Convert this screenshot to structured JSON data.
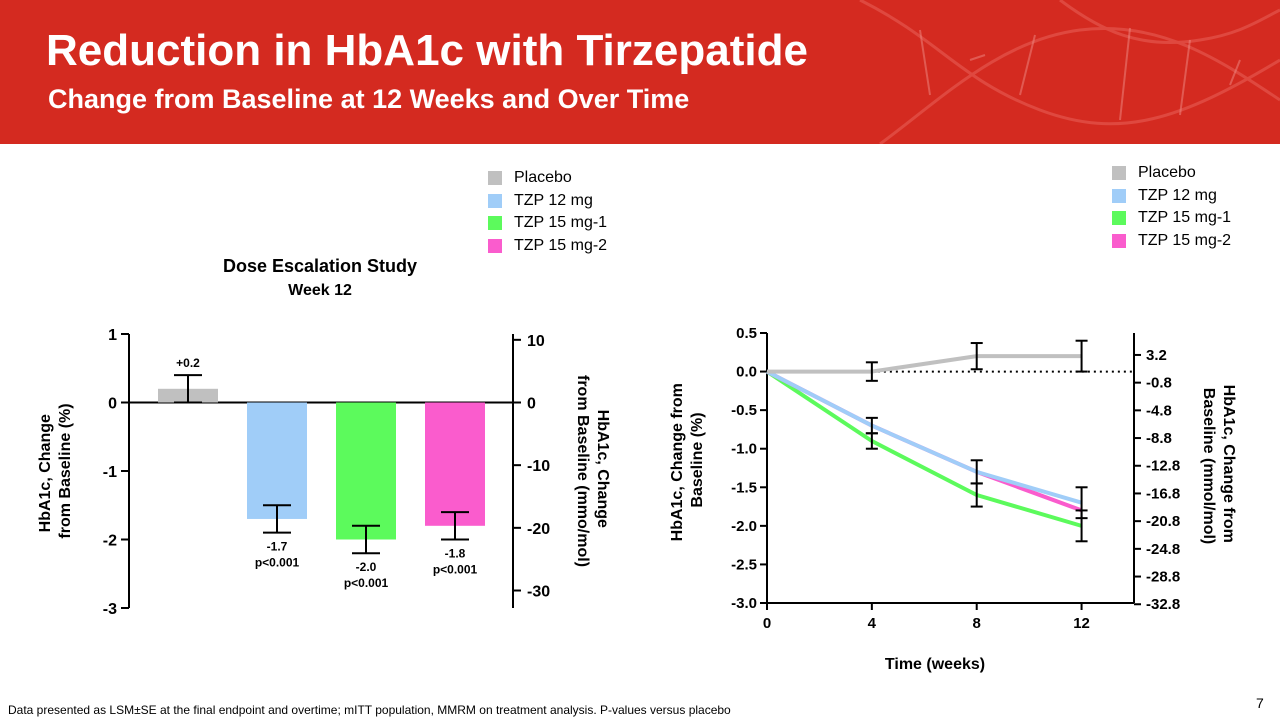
{
  "slide": {
    "title": "Reduction in HbA1c with Tirzepatide",
    "subtitle": "Change from Baseline at 12 Weeks and Over Time",
    "footnote": "Data presented as LSM±SE at the final endpoint and overtime; mITT population, MMRM on treatment analysis. P-values versus placebo",
    "page_number": "7",
    "banner_color": "#d42a20"
  },
  "legend": [
    {
      "label": "Placebo",
      "color": "#c0c0c0"
    },
    {
      "label": "TZP 12 mg",
      "color": "#a0cdf8"
    },
    {
      "label": "TZP 15 mg-1",
      "color": "#5cfa5c"
    },
    {
      "label": "TZP 15 mg-2",
      "color": "#fa5ccd"
    }
  ],
  "chart_data": [
    {
      "type": "bar",
      "title": "Dose Escalation Study",
      "subtitle": "Week 12",
      "categories": [
        "Placebo",
        "TZP 12 mg",
        "TZP 15 mg-1",
        "TZP 15 mg-2"
      ],
      "values": [
        0.2,
        -1.7,
        -2.0,
        -1.8
      ],
      "errors": [
        0.2,
        0.2,
        0.2,
        0.2
      ],
      "colors": [
        "#c0c0c0",
        "#a0cdf8",
        "#5cfa5c",
        "#fa5ccd"
      ],
      "value_labels": [
        "+0.2",
        "-1.7",
        "-2.0",
        "-1.8"
      ],
      "p_labels": [
        "",
        "p<0.001",
        "p<0.001",
        "p<0.001"
      ],
      "ylabel": "HbA1c, Change from Baseline (%)",
      "ylabel_lines": [
        "HbA1c, Change",
        "from Baseline (%)"
      ],
      "ylim": [
        -3,
        1
      ],
      "yticks": [
        "1",
        "0",
        "-1",
        "-2",
        "-3"
      ],
      "y2label": "HbA1c, Change from Baseline (mmo/mol)",
      "y2label_lines": [
        "HbA1c, Change",
        "from Baseline (mmo/mol)"
      ],
      "y2ticks": [
        "10",
        "0",
        "-10",
        "-20",
        "-30"
      ],
      "grid": false
    },
    {
      "type": "line",
      "x": [
        0,
        4,
        8,
        12
      ],
      "series": [
        {
          "name": "Placebo",
          "color": "#c0c0c0",
          "values": [
            0,
            0,
            0.2,
            0.2
          ],
          "errors": [
            0,
            0.12,
            0.17,
            0.2
          ]
        },
        {
          "name": "TZP 12 mg",
          "color": "#a0cdf8",
          "values": [
            0,
            -0.7,
            -1.3,
            -1.7
          ],
          "errors": [
            0,
            0.1,
            0.15,
            0.2
          ]
        },
        {
          "name": "TZP 15 mg-1",
          "color": "#5cfa5c",
          "values": [
            0,
            -0.9,
            -1.6,
            -2.0
          ],
          "errors": [
            0,
            0.1,
            0.15,
            0.2
          ]
        },
        {
          "name": "TZP 15 mg-2",
          "color": "#fa5ccd",
          "values": [
            0,
            -0.7,
            -1.3,
            -1.8
          ],
          "errors": [
            0,
            0.1,
            0.15,
            0.2
          ]
        }
      ],
      "xlabel": "Time (weeks)",
      "xticks": [
        "0",
        "4",
        "8",
        "12"
      ],
      "ylabel": "HbA1c, Change from Baseline (%)",
      "ylabel_lines": [
        "HbA1c, Change from",
        "Baseline (%)"
      ],
      "ylim": [
        -3.0,
        0.5
      ],
      "xlim": [
        0,
        14
      ],
      "yticks": [
        "0.5",
        "0.0",
        "-0.5",
        "-1.0",
        "-1.5",
        "-2.0",
        "-2.5",
        "-3.0"
      ],
      "y2label": "HbA1c, Change from Baseline (mmol/mol)",
      "y2label_lines": [
        "HbA1c, Change from",
        "Baseline (mmol/mol)"
      ],
      "y2ticks": [
        "3.2",
        "-0.8",
        "-4.8",
        "-8.8",
        "-12.8",
        "-16.8",
        "-20.8",
        "-24.8",
        "-28.8",
        "-32.8"
      ],
      "reference_line": 0,
      "grid": false
    }
  ]
}
